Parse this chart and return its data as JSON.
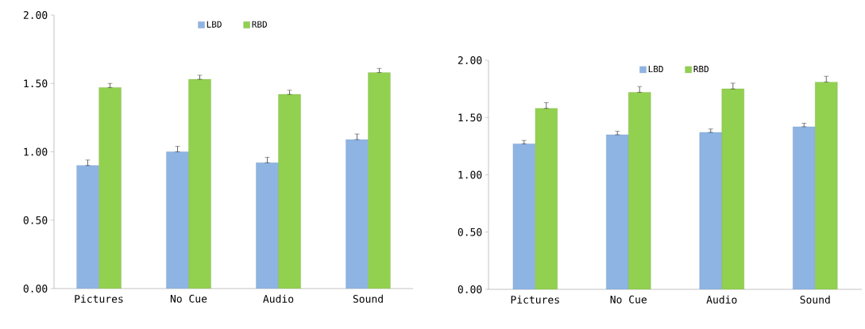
{
  "chart_data": [
    {
      "type": "bar",
      "categories": [
        "Pictures",
        "No Cue",
        "Audio",
        "Sound"
      ],
      "series": [
        {
          "name": "LBD",
          "color": "#8eb4e3",
          "values": [
            0.9,
            1.0,
            0.92,
            1.09
          ],
          "errors": [
            [
              0.9,
              0.94
            ],
            [
              1.0,
              1.04
            ],
            [
              0.92,
              0.96
            ],
            [
              1.09,
              1.13
            ]
          ]
        },
        {
          "name": "RBD",
          "color": "#92d050",
          "values": [
            1.47,
            1.53,
            1.42,
            1.58
          ],
          "errors": [
            [
              1.47,
              1.5
            ],
            [
              1.53,
              1.56
            ],
            [
              1.42,
              1.45
            ],
            [
              1.58,
              1.61
            ]
          ]
        }
      ],
      "ylim": [
        0,
        2
      ],
      "yticks": [
        {
          "value": 0,
          "label": "0.00"
        },
        {
          "value": 0.5,
          "label": "0.50"
        },
        {
          "value": 1,
          "label": "1.00"
        },
        {
          "value": 1.5,
          "label": "1.50"
        },
        {
          "value": 2,
          "label": "2.00"
        }
      ],
      "grid": false,
      "legend": "top"
    },
    {
      "type": "bar",
      "categories": [
        "Pictures",
        "No Cue",
        "Audio",
        "Sound"
      ],
      "series": [
        {
          "name": "LBD",
          "color": "#8eb4e3",
          "values": [
            1.27,
            1.35,
            1.37,
            1.42
          ],
          "errors": [
            [
              1.27,
              1.3
            ],
            [
              1.35,
              1.38
            ],
            [
              1.37,
              1.4
            ],
            [
              1.42,
              1.45
            ]
          ]
        },
        {
          "name": "RBD",
          "color": "#92d050",
          "values": [
            1.58,
            1.72,
            1.75,
            1.81
          ],
          "errors": [
            [
              1.58,
              1.63
            ],
            [
              1.72,
              1.77
            ],
            [
              1.75,
              1.8
            ],
            [
              1.81,
              1.86
            ]
          ]
        }
      ],
      "ylim": [
        0,
        2
      ],
      "yticks": [
        {
          "value": 0,
          "label": "0.00"
        },
        {
          "value": 0.5,
          "label": "0.50"
        },
        {
          "value": 1,
          "label": "1.00"
        },
        {
          "value": 1.5,
          "label": "1.50"
        },
        {
          "value": 2,
          "label": "2.00"
        }
      ],
      "grid": false,
      "legend": "top"
    }
  ]
}
